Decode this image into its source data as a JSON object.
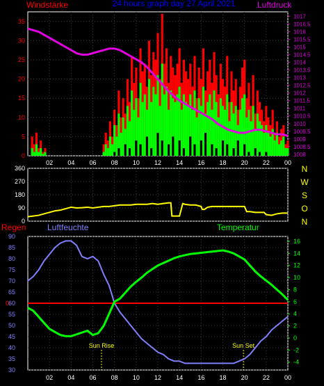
{
  "header": {
    "wind_label": "Windstärke",
    "title": "24 hours graph day  27 April 2021",
    "pressure_label": "Luftdruck"
  },
  "colors": {
    "wind_gust": "#ff0000",
    "wind_avg": "#00ff00",
    "wind_min": "#000000",
    "pressure": "#e000e0",
    "direction": "#ffff00",
    "humidity": "#8080ff",
    "temperature": "#00ff00",
    "rain": "#ff0000",
    "title": "#0000ff",
    "frame": "#ffffff",
    "grid": "#404040"
  },
  "lower_labels": {
    "rain": "Regen",
    "humidity": "Luftfeuchte",
    "temperature": "Temperatur",
    "sunrise": "Sun Rise",
    "sunset": "Sun Set"
  },
  "compass": [
    "N",
    "W",
    "S",
    "O",
    "N"
  ],
  "chart_data": [
    {
      "type": "bar",
      "name": "wind",
      "x_ticks": [
        "02",
        "04",
        "06",
        "08",
        "10",
        "12",
        "14",
        "16",
        "18",
        "20",
        "22",
        "00"
      ],
      "ylim": [
        0,
        37.5
      ],
      "y_ticks": [
        "0",
        "5",
        "10",
        "15",
        "20",
        "25",
        "30",
        "35"
      ],
      "series": [
        {
          "role": "gust",
          "x": [
            0.4,
            0.6,
            0.8,
            1.0,
            1.2,
            1.4,
            1.6,
            7.0,
            7.2,
            7.4,
            7.6,
            7.8,
            8.0,
            8.2,
            8.4,
            8.6,
            8.8,
            9.0,
            9.2,
            9.4,
            9.6,
            9.8,
            10.0,
            10.2,
            10.4,
            10.6,
            10.8,
            11.0,
            11.2,
            11.4,
            11.6,
            11.8,
            12.0,
            12.2,
            12.4,
            12.6,
            12.8,
            13.0,
            13.2,
            13.4,
            13.6,
            13.8,
            14.0,
            14.2,
            14.4,
            14.6,
            14.8,
            15.0,
            15.2,
            15.4,
            15.6,
            15.8,
            16.0,
            16.2,
            16.4,
            16.6,
            16.8,
            17.0,
            17.2,
            17.4,
            17.6,
            17.8,
            18.0,
            18.2,
            18.4,
            18.6,
            18.8,
            19.0,
            19.2,
            19.4,
            19.6,
            19.8,
            20.0,
            20.2,
            20.4,
            20.6,
            20.8,
            21.0,
            21.2,
            21.4,
            21.6,
            21.8,
            22.0,
            22.2,
            22.4,
            22.6,
            22.8,
            23.0,
            23.2,
            23.4,
            23.6,
            23.8,
            24.0
          ],
          "values": [
            5,
            3,
            6,
            2,
            4,
            1,
            2,
            3,
            6,
            4,
            9,
            5,
            12,
            8,
            17,
            10,
            15,
            11,
            20,
            14,
            26,
            19,
            23,
            15,
            28,
            22,
            24,
            18,
            30,
            21,
            27,
            25,
            32,
            20,
            37,
            24,
            28,
            19,
            26,
            23,
            21,
            24,
            28,
            19,
            25,
            22,
            20,
            24,
            18,
            26,
            15,
            23,
            20,
            28,
            17,
            22,
            25,
            19,
            27,
            21,
            16,
            24,
            20,
            18,
            26,
            14,
            22,
            17,
            20,
            12,
            18,
            23,
            25,
            15,
            19,
            13,
            21,
            11,
            17,
            14,
            12,
            9,
            13,
            10,
            8,
            12,
            6,
            9,
            5,
            7,
            8,
            3,
            4
          ]
        },
        {
          "role": "average",
          "x": [
            0.4,
            0.6,
            0.8,
            1.0,
            1.2,
            1.4,
            1.6,
            7.0,
            7.2,
            7.4,
            7.6,
            7.8,
            8.0,
            8.2,
            8.4,
            8.6,
            8.8,
            9.0,
            9.2,
            9.4,
            9.6,
            9.8,
            10.0,
            10.2,
            10.4,
            10.6,
            10.8,
            11.0,
            11.2,
            11.4,
            11.6,
            11.8,
            12.0,
            12.2,
            12.4,
            12.6,
            12.8,
            13.0,
            13.2,
            13.4,
            13.6,
            13.8,
            14.0,
            14.2,
            14.4,
            14.6,
            14.8,
            15.0,
            15.2,
            15.4,
            15.6,
            15.8,
            16.0,
            16.2,
            16.4,
            16.6,
            16.8,
            17.0,
            17.2,
            17.4,
            17.6,
            17.8,
            18.0,
            18.2,
            18.4,
            18.6,
            18.8,
            19.0,
            19.2,
            19.4,
            19.6,
            19.8,
            20.0,
            20.2,
            20.4,
            20.6,
            20.8,
            21.0,
            21.2,
            21.4,
            21.6,
            21.8,
            22.0,
            22.2,
            22.4,
            22.6,
            22.8,
            23.0,
            23.2,
            23.4,
            23.6,
            23.8,
            24.0
          ],
          "values": [
            2,
            1,
            3,
            1,
            2,
            0.5,
            1,
            1,
            3,
            2,
            5,
            3,
            8,
            5,
            11,
            6,
            10,
            7,
            13,
            9,
            17,
            12,
            15,
            10,
            19,
            14,
            16,
            12,
            20,
            14,
            18,
            16,
            21,
            13,
            24,
            16,
            18,
            12,
            17,
            15,
            14,
            16,
            18,
            12,
            16,
            14,
            13,
            16,
            12,
            17,
            10,
            15,
            13,
            18,
            11,
            14,
            16,
            12,
            17,
            14,
            10,
            15,
            13,
            12,
            16,
            9,
            14,
            11,
            13,
            8,
            12,
            15,
            16,
            10,
            12,
            9,
            13,
            7,
            11,
            9,
            8,
            6,
            8,
            6,
            5,
            7,
            4,
            6,
            3,
            4,
            5,
            2,
            2
          ]
        },
        {
          "role": "minimum",
          "x": [
            8.0,
            8.4,
            9.0,
            9.4,
            10.0,
            10.4,
            11.0,
            11.4,
            12.0,
            12.4,
            13.0,
            13.4,
            14.0,
            14.4,
            15.0,
            15.4,
            16.0,
            16.4,
            17.0,
            17.4,
            18.0,
            18.4,
            19.0,
            19.4,
            20.0,
            20.4,
            21.0,
            21.4,
            22.0
          ],
          "values": [
            1,
            2,
            3,
            2,
            4,
            3,
            5,
            2,
            6,
            4,
            3,
            5,
            4,
            2,
            5,
            3,
            4,
            6,
            3,
            2,
            4,
            3,
            2,
            4,
            3,
            1,
            2,
            1,
            1
          ]
        }
      ]
    },
    {
      "type": "line",
      "name": "pressure",
      "ylim": [
        1007.9,
        1017.3
      ],
      "y_ticks": [
        "1017",
        "1016.5",
        "1016",
        "1015.5",
        "1015",
        "1014.5",
        "1014",
        "1013.5",
        "1013",
        "1012.5",
        "1012",
        "1011.5",
        "1011",
        "1010.5",
        "1010",
        "1009.5",
        "1009",
        "1008.5",
        "1008"
      ],
      "x": [
        0,
        0.5,
        1,
        1.5,
        2,
        2.5,
        3,
        3.5,
        4,
        4.5,
        5,
        5.5,
        6,
        6.5,
        7,
        7.5,
        8,
        8.5,
        9,
        9.5,
        10,
        10.5,
        11,
        11.5,
        12,
        12.5,
        13,
        13.5,
        14,
        14.5,
        15,
        15.5,
        16,
        16.5,
        17,
        17.5,
        18,
        18.5,
        19,
        19.5,
        20,
        20.5,
        21,
        21.5,
        22,
        22.5,
        23,
        23.5,
        24
      ],
      "values": [
        1016.2,
        1016.1,
        1016.0,
        1015.8,
        1015.6,
        1015.4,
        1015.2,
        1015.0,
        1014.8,
        1014.6,
        1014.5,
        1014.5,
        1014.6,
        1014.7,
        1014.8,
        1014.9,
        1014.9,
        1014.8,
        1014.6,
        1014.4,
        1014.2,
        1014.0,
        1013.7,
        1013.3,
        1012.9,
        1012.5,
        1012.1,
        1011.8,
        1011.5,
        1011.3,
        1011.1,
        1010.9,
        1010.7,
        1010.5,
        1010.3,
        1010.0,
        1009.8,
        1009.6,
        1009.5,
        1009.4,
        1009.4,
        1009.5,
        1009.6,
        1009.6,
        1009.5,
        1009.4,
        1009.3,
        1009.3,
        1009.2
      ]
    },
    {
      "type": "line",
      "name": "wind direction",
      "x_ticks": [
        "02",
        "04",
        "06",
        "08",
        "10",
        "12",
        "14",
        "16",
        "18",
        "20",
        "22",
        "00"
      ],
      "ylim": [
        0,
        360
      ],
      "y_ticks": [
        "0",
        "90",
        "180",
        "270",
        "360"
      ],
      "x": [
        0,
        0.5,
        1,
        1.5,
        2,
        2.5,
        3,
        3.5,
        4,
        4.5,
        5,
        5.5,
        6,
        6.5,
        7,
        7.5,
        8,
        8.5,
        9,
        9.5,
        10,
        10.5,
        11,
        11.5,
        12,
        12.5,
        13,
        13.2,
        13.3,
        13.5,
        14,
        14.3,
        14.5,
        14.8,
        15,
        15.3,
        15.5,
        16,
        16.1,
        16.3,
        16.6,
        17,
        17.5,
        18,
        18.5,
        19,
        19.5,
        20,
        20.2,
        20.5,
        21,
        21.5,
        21.8,
        22,
        22.5,
        23,
        23.5,
        24
      ],
      "values": [
        30,
        35,
        40,
        50,
        60,
        70,
        75,
        85,
        95,
        90,
        92,
        95,
        90,
        95,
        100,
        100,
        105,
        110,
        110,
        110,
        115,
        115,
        115,
        120,
        115,
        120,
        125,
        125,
        35,
        35,
        35,
        120,
        115,
        112,
        110,
        110,
        110,
        100,
        80,
        80,
        95,
        100,
        100,
        100,
        100,
        100,
        100,
        100,
        65,
        65,
        60,
        60,
        60,
        45,
        40,
        50,
        55,
        55
      ]
    },
    {
      "type": "line",
      "name": "humidity",
      "x_ticks": [
        "02",
        "04",
        "06",
        "08",
        "10",
        "12",
        "14",
        "16",
        "18",
        "20",
        "22",
        "00"
      ],
      "ylim": [
        30,
        90
      ],
      "y_ticks": [
        "90",
        "85",
        "80",
        "75",
        "70",
        "65",
        "60",
        "55",
        "50",
        "45",
        "40",
        "35",
        "30"
      ],
      "x": [
        0,
        0.5,
        1,
        1.5,
        2,
        2.5,
        3,
        3.5,
        4,
        4.5,
        5,
        5.5,
        6,
        6.5,
        7,
        7.5,
        8,
        8.5,
        9,
        9.5,
        10,
        10.5,
        11,
        11.5,
        12,
        12.5,
        13,
        13.5,
        14,
        14.5,
        15,
        15.5,
        16,
        16.5,
        17,
        17.5,
        18,
        18.5,
        19,
        19.5,
        20,
        20.5,
        21,
        21.5,
        22,
        22.5,
        23,
        23.5,
        24
      ],
      "values": [
        70,
        72,
        75,
        79,
        82,
        85,
        87,
        88,
        88,
        86,
        81,
        80,
        81,
        79,
        73,
        68,
        60,
        56,
        53,
        50,
        47,
        44,
        42,
        40,
        38,
        37,
        35,
        34,
        34,
        33,
        33,
        33,
        33,
        33,
        33,
        33,
        33,
        33,
        33,
        34,
        35,
        37,
        40,
        43,
        45,
        48,
        50,
        52,
        54
      ]
    },
    {
      "type": "line",
      "name": "temperature",
      "ylim": [
        -5.3,
        16.8
      ],
      "y_ticks": [
        "16",
        "14",
        "12",
        "10",
        "8",
        "6",
        "4",
        "2",
        "0",
        "-2",
        "-4"
      ],
      "x": [
        0,
        0.5,
        1,
        1.5,
        2,
        2.5,
        3,
        3.5,
        4,
        4.5,
        5,
        5.5,
        6,
        6.5,
        7,
        7.5,
        8,
        8.5,
        9,
        9.5,
        10,
        10.5,
        11,
        11.5,
        12,
        12.5,
        13,
        13.5,
        14,
        14.5,
        15,
        15.5,
        16,
        16.5,
        17,
        17.5,
        18,
        18.5,
        19,
        19.5,
        20,
        20.5,
        21,
        21.5,
        22,
        22.5,
        23,
        23.5,
        24
      ],
      "values": [
        5.0,
        4.5,
        3.5,
        2.5,
        1.5,
        1.0,
        0.5,
        0.3,
        0.3,
        0.6,
        0.9,
        1.2,
        0.5,
        0.8,
        2.0,
        4.0,
        6.0,
        6.5,
        7.5,
        8.5,
        9.3,
        10.0,
        10.8,
        11.4,
        12.0,
        12.4,
        12.8,
        13.2,
        13.5,
        13.7,
        13.9,
        14.0,
        14.1,
        14.2,
        14.3,
        14.4,
        14.5,
        14.3,
        14.0,
        13.5,
        13.0,
        12.0,
        11.0,
        10.2,
        9.5,
        8.8,
        8.0,
        7.2,
        6.3
      ]
    },
    {
      "type": "line",
      "name": "rain",
      "y_ticks": [
        "0"
      ],
      "x": [
        0,
        24
      ],
      "values": [
        0,
        0
      ]
    }
  ],
  "sun_marks": [
    6.8,
    19.9
  ]
}
